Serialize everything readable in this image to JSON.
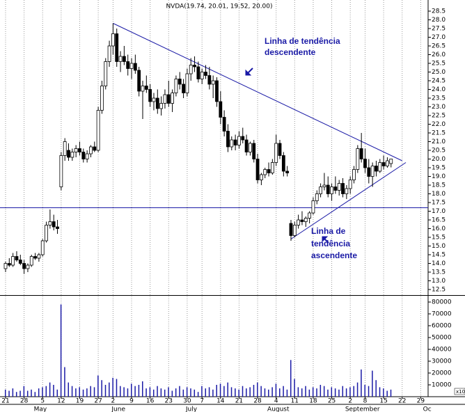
{
  "chart_data": {
    "type": "candlestick",
    "title": "NVDA(19.74, 20.01, 19.52, 20.00)",
    "xlim": [
      -1.5,
      114
    ],
    "ylim": [
      12.2,
      29.0
    ],
    "yticks": [
      12.5,
      {
        "value": 13,
        "label": "13.0"
      },
      13.5,
      {
        "value": 14,
        "label": "14.0"
      },
      14.5,
      {
        "value": 15,
        "label": "15.0"
      },
      15.5,
      {
        "value": 16,
        "label": "16.0"
      },
      16.5,
      {
        "value": 17,
        "label": "17.0"
      },
      17.5,
      {
        "value": 18,
        "label": "18.0"
      },
      18.5,
      {
        "value": 19,
        "label": "19.0"
      },
      19.5,
      {
        "value": 20,
        "label": "20.0"
      },
      20.5,
      {
        "value": 21,
        "label": "21.0"
      },
      21.5,
      {
        "value": 22,
        "label": "22.0"
      },
      22.5,
      {
        "value": 23,
        "label": "23.0"
      },
      23.5,
      {
        "value": 24,
        "label": "24.0"
      },
      24.5,
      {
        "value": 25,
        "label": "25.0"
      },
      25.5,
      {
        "value": 26,
        "label": "26.0"
      },
      26.5,
      {
        "value": 27,
        "label": "27.0"
      },
      27.5,
      {
        "value": 28,
        "label": "28.0"
      },
      28.5
    ],
    "xticks": [
      {
        "value": 0,
        "label": "21"
      },
      {
        "value": 5,
        "label": "28"
      },
      {
        "value": 10,
        "label": "5"
      },
      {
        "value": 15,
        "label": "12"
      },
      {
        "value": 20,
        "label": "19"
      },
      {
        "value": 25,
        "label": "27"
      },
      {
        "value": 29,
        "label": "2"
      },
      {
        "value": 34,
        "label": "9"
      },
      {
        "value": 39,
        "label": "16"
      },
      {
        "value": 44,
        "label": "23"
      },
      {
        "value": 49,
        "label": "30"
      },
      {
        "value": 53,
        "label": "7"
      },
      {
        "value": 58,
        "label": "14"
      },
      {
        "value": 63,
        "label": "21"
      },
      {
        "value": 68,
        "label": "28"
      },
      {
        "value": 73,
        "label": "4"
      },
      {
        "value": 78,
        "label": "11"
      },
      {
        "value": 83,
        "label": "18"
      },
      {
        "value": 88,
        "label": "25"
      },
      {
        "value": 93,
        "label": "2"
      },
      {
        "value": 97,
        "label": "8"
      },
      {
        "value": 102,
        "label": "15"
      },
      {
        "value": 107,
        "label": "22"
      },
      {
        "value": 112,
        "label": "29"
      }
    ],
    "month_labels": [
      {
        "value": 8,
        "label": "May"
      },
      {
        "value": 29,
        "label": "June"
      },
      {
        "value": 49,
        "label": "July"
      },
      {
        "value": 71,
        "label": "August"
      },
      {
        "value": 92,
        "label": "September"
      },
      {
        "value": 113,
        "label": "Oc"
      }
    ],
    "open": [
      13.7,
      14.0,
      13.9,
      14.4,
      14.2,
      14.0,
      13.7,
      13.9,
      14.4,
      14.3,
      14.5,
      15.3,
      16.2,
      16.4,
      16.1,
      18.4,
      20.2,
      20.5,
      20.1,
      20.4,
      20.6,
      20.4,
      20.0,
      20.3,
      20.7,
      20.5,
      22.8,
      24.2,
      25.6,
      26.5,
      27.2,
      25.6,
      25.9,
      25.6,
      25.2,
      25.5,
      25.1,
      23.9,
      24.2,
      24.0,
      23.3,
      23.5,
      22.9,
      23.2,
      23.7,
      23.2,
      23.8,
      24.6,
      24.3,
      23.8,
      24.9,
      25.4,
      25.3,
      24.6,
      25.0,
      24.8,
      24.3,
      24.5,
      23.3,
      22.4,
      21.6,
      20.7,
      21.1,
      20.8,
      21.3,
      21.1,
      20.4,
      20.9,
      20.0,
      18.8,
      19.1,
      19.4,
      19.2,
      19.8,
      20.9,
      20.2,
      19.3,
      16.3,
      15.6,
      16.2,
      16.5,
      16.4,
      16.6,
      16.9,
      17.6,
      18.0,
      18.4,
      18.5,
      18.0,
      18.4,
      18.2,
      18.6,
      18.0,
      18.3,
      18.8,
      19.4,
      20.6,
      20.0,
      19.5,
      19.0,
      19.6,
      19.3,
      19.8,
      19.6,
      19.74
    ],
    "high": [
      14.1,
      14.3,
      14.6,
      14.7,
      14.5,
      14.2,
      14.0,
      14.5,
      14.6,
      14.6,
      15.4,
      16.4,
      17.1,
      16.8,
      16.5,
      20.4,
      21.2,
      20.9,
      20.6,
      20.8,
      21.0,
      20.6,
      20.5,
      20.8,
      21.0,
      23.0,
      24.5,
      25.8,
      26.8,
      27.8,
      27.5,
      26.2,
      26.5,
      26.0,
      25.8,
      26.0,
      25.3,
      24.5,
      24.8,
      24.3,
      23.8,
      24.0,
      23.6,
      24.0,
      24.5,
      24.0,
      24.8,
      25.0,
      24.6,
      25.2,
      25.8,
      25.9,
      25.6,
      25.2,
      25.4,
      25.3,
      24.8,
      24.7,
      23.9,
      22.8,
      22.0,
      21.3,
      21.4,
      21.6,
      21.8,
      21.4,
      21.0,
      21.1,
      20.3,
      19.2,
      19.5,
      19.8,
      20.0,
      21.4,
      21.1,
      20.4,
      19.6,
      16.5,
      16.4,
      16.8,
      17.0,
      16.7,
      17.0,
      17.8,
      18.2,
      18.6,
      19.2,
      19.0,
      18.6,
      19.0,
      18.8,
      18.9,
      18.5,
      19.0,
      19.6,
      20.8,
      21.5,
      20.6,
      20.0,
      19.8,
      19.9,
      20.0,
      20.2,
      20.1,
      20.01
    ],
    "low": [
      13.5,
      13.8,
      13.8,
      14.1,
      13.9,
      13.4,
      13.5,
      13.8,
      14.2,
      14.1,
      14.4,
      15.2,
      16.0,
      15.9,
      15.7,
      18.2,
      19.9,
      19.9,
      19.9,
      20.1,
      20.2,
      19.8,
      19.8,
      20.1,
      20.4,
      20.4,
      22.6,
      24.0,
      25.3,
      26.0,
      25.3,
      25.0,
      25.4,
      24.8,
      24.6,
      24.9,
      23.6,
      22.3,
      23.8,
      23.0,
      22.8,
      22.6,
      22.5,
      22.9,
      23.0,
      22.7,
      23.6,
      24.0,
      23.5,
      23.6,
      24.5,
      25.0,
      24.4,
      24.3,
      24.6,
      24.0,
      23.5,
      23.0,
      22.0,
      21.3,
      20.4,
      20.5,
      20.5,
      20.6,
      20.9,
      20.2,
      20.2,
      19.8,
      18.6,
      18.5,
      18.9,
      19.0,
      19.1,
      19.6,
      20.0,
      19.0,
      19.0,
      15.3,
      15.5,
      16.0,
      16.2,
      16.1,
      16.3,
      16.8,
      17.4,
      17.8,
      18.2,
      17.8,
      17.6,
      18.0,
      17.9,
      17.8,
      17.7,
      18.0,
      18.6,
      19.2,
      19.8,
      19.2,
      18.6,
      18.4,
      19.0,
      19.2,
      19.4,
      19.5,
      19.52
    ],
    "close": [
      14.0,
      13.9,
      14.4,
      14.2,
      14.0,
      13.7,
      13.9,
      14.4,
      14.3,
      14.5,
      15.3,
      16.2,
      16.4,
      16.1,
      16.0,
      20.2,
      21.0,
      20.1,
      20.4,
      20.6,
      20.4,
      20.0,
      20.3,
      20.7,
      20.5,
      22.8,
      24.2,
      25.6,
      26.5,
      27.2,
      25.6,
      25.9,
      25.6,
      25.2,
      25.5,
      25.1,
      23.9,
      24.2,
      24.0,
      23.3,
      23.5,
      22.9,
      23.2,
      23.7,
      23.2,
      23.8,
      24.6,
      24.3,
      23.8,
      24.9,
      25.4,
      25.3,
      24.6,
      25.0,
      24.8,
      24.3,
      24.5,
      23.3,
      22.4,
      21.6,
      20.7,
      21.1,
      20.8,
      21.3,
      21.1,
      20.4,
      20.9,
      20.0,
      18.8,
      19.1,
      19.4,
      19.2,
      19.8,
      20.9,
      20.2,
      19.3,
      19.2,
      15.6,
      16.2,
      16.5,
      16.4,
      16.6,
      16.9,
      17.6,
      18.0,
      18.4,
      18.5,
      18.0,
      18.4,
      18.2,
      18.6,
      18.0,
      18.3,
      18.8,
      19.4,
      20.6,
      20.0,
      19.5,
      19.0,
      19.6,
      19.3,
      19.8,
      19.6,
      19.9,
      20.0
    ],
    "volume": [
      6000,
      5000,
      7000,
      4000,
      5000,
      9000,
      5000,
      6000,
      4000,
      7000,
      8000,
      9000,
      12000,
      10000,
      6000,
      78000,
      25000,
      12000,
      9000,
      7000,
      8000,
      6000,
      7000,
      9000,
      8000,
      18000,
      14000,
      10000,
      12000,
      16000,
      15000,
      9000,
      8000,
      7000,
      11000,
      9000,
      10000,
      13000,
      7000,
      8000,
      6000,
      9000,
      7000,
      6000,
      8000,
      5000,
      7000,
      9000,
      6000,
      8000,
      7000,
      6000,
      4000,
      9000,
      7000,
      8000,
      6000,
      10000,
      11000,
      9000,
      12000,
      8000,
      7000,
      6000,
      9000,
      7000,
      8000,
      10000,
      12000,
      9000,
      7000,
      6000,
      8000,
      11000,
      7000,
      9000,
      6000,
      31000,
      15000,
      8000,
      7000,
      9000,
      6000,
      8000,
      7000,
      10000,
      9000,
      6000,
      8000,
      7000,
      6000,
      9000,
      7000,
      8000,
      9000,
      12000,
      23000,
      10000,
      9000,
      22000,
      14000,
      8000,
      7000,
      5000,
      6000
    ],
    "vlim": [
      0,
      85000
    ],
    "vticks": [
      10000,
      20000,
      30000,
      40000,
      50000,
      60000,
      70000,
      80000
    ],
    "volume_unit": "x10",
    "hline": 17.2,
    "trendlines": [
      {
        "x": [
          29,
          107
        ],
        "y": [
          27.8,
          19.9
        ]
      },
      {
        "x": [
          77,
          108
        ],
        "y": [
          15.4,
          19.8
        ]
      }
    ],
    "annotations": [
      [
        "Linha de tendência",
        "descendente"
      ],
      [
        "Linha de",
        "tendência",
        "ascendente"
      ]
    ]
  }
}
